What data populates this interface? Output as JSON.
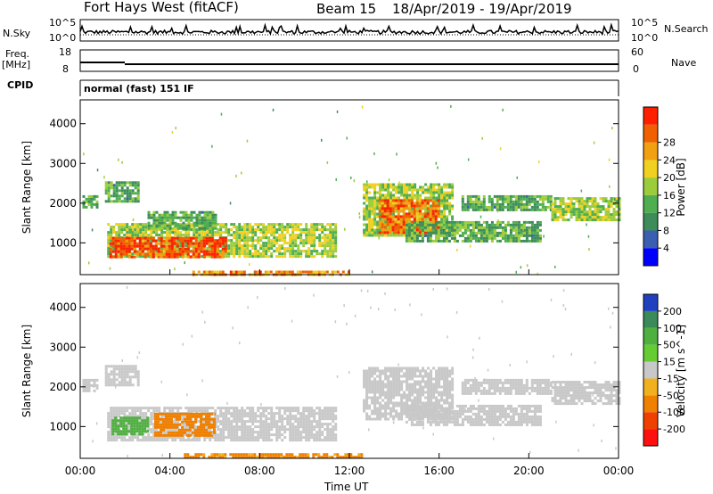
{
  "header": {
    "radar": "Fort Hays West (fitACF)",
    "beam": "Beam 15",
    "dates": "18/Apr/2019 - 19/Apr/2019"
  },
  "side_labels": {
    "nsky": "N.Sky",
    "nsearch": "N.Search",
    "freq": "Freq.",
    "mhz": "[MHz]",
    "nave": "Nave",
    "cpid": "CPID"
  },
  "strip_ticks": {
    "noise_left_top": "10^5",
    "noise_left_bottom": "10^0",
    "noise_right_top": "10^5",
    "noise_right_bottom": "10^0",
    "freq_top": "18",
    "freq_bottom": "8",
    "nave_top": "60",
    "nave_bottom": "0"
  },
  "cpid_text": "normal (fast) 151 IF",
  "chart_data": [
    {
      "type": "heatmap",
      "name": "power",
      "ylabel": "Slant Range [km]",
      "colorbar_label": "Power [dB]",
      "colorbar_ticks": [
        "4",
        "8",
        "12",
        "16",
        "20",
        "24",
        "28"
      ],
      "colorbar_colors": [
        "#0000ff",
        "#3a5fb0",
        "#3d8c5a",
        "#4fae50",
        "#9ccc3c",
        "#f0d020",
        "#f0a010",
        "#f06000",
        "#ff2000"
      ],
      "yticks": [
        "1000",
        "2000",
        "3000",
        "4000"
      ],
      "ylim": [
        200,
        4600
      ],
      "xlim_hours": [
        0,
        24
      ],
      "regions": [
        {
          "t0": 0.1,
          "t1": 0.7,
          "r0": 1900,
          "r1": 2200,
          "level": 12
        },
        {
          "t0": 1.1,
          "t1": 2.6,
          "r0": 2050,
          "r1": 2550,
          "level": 12
        },
        {
          "t0": 1.2,
          "t1": 11.4,
          "r0": 650,
          "r1": 1500,
          "level": 16
        },
        {
          "t0": 1.3,
          "t1": 6.5,
          "r0": 650,
          "r1": 1150,
          "level": 28
        },
        {
          "t0": 3.0,
          "t1": 6.0,
          "r0": 1350,
          "r1": 1800,
          "level": 12
        },
        {
          "t0": 5.0,
          "t1": 12.0,
          "r0": 200,
          "r1": 300,
          "level": 24
        },
        {
          "t0": 12.6,
          "t1": 16.6,
          "r0": 1200,
          "r1": 2500,
          "level": 16
        },
        {
          "t0": 13.3,
          "t1": 16.0,
          "r0": 1250,
          "r1": 2100,
          "level": 26
        },
        {
          "t0": 14.5,
          "t1": 20.5,
          "r0": 1050,
          "r1": 1550,
          "level": 12
        },
        {
          "t0": 17.0,
          "t1": 21.0,
          "r0": 1800,
          "r1": 2200,
          "level": 12
        },
        {
          "t0": 21.0,
          "t1": 24.0,
          "r0": 1600,
          "r1": 2150,
          "level": 16
        }
      ]
    },
    {
      "type": "heatmap",
      "name": "velocity",
      "ylabel": "Slant Range [km]",
      "colorbar_label": "Velocity [m s^-1]",
      "colorbar_ticks": [
        "200",
        "100",
        "50",
        "15",
        "-15",
        "-50",
        "-100",
        "-200"
      ],
      "colorbar_colors": [
        "#2040c0",
        "#3a8a5a",
        "#4fb040",
        "#66cc33",
        "#c8c8c8",
        "#f0b020",
        "#f08000",
        "#f04000",
        "#ff1010"
      ],
      "yticks": [
        "1000",
        "2000",
        "3000",
        "4000"
      ],
      "ylim": [
        200,
        4600
      ],
      "xlim_hours": [
        0,
        24
      ],
      "regions": [
        {
          "t0": 0.1,
          "t1": 0.7,
          "r0": 1900,
          "r1": 2200,
          "vel": 0
        },
        {
          "t0": 1.1,
          "t1": 2.6,
          "r0": 2050,
          "r1": 2550,
          "vel": 0
        },
        {
          "t0": 1.2,
          "t1": 11.4,
          "r0": 650,
          "r1": 1500,
          "vel": 0
        },
        {
          "t0": 1.4,
          "t1": 3.0,
          "r0": 800,
          "r1": 1250,
          "vel": 60
        },
        {
          "t0": 3.3,
          "t1": 6.0,
          "r0": 780,
          "r1": 1350,
          "vel": -60
        },
        {
          "t0": 4.5,
          "t1": 12.5,
          "r0": 200,
          "r1": 330,
          "vel": -40
        },
        {
          "t0": 12.6,
          "t1": 16.6,
          "r0": 1200,
          "r1": 2500,
          "vel": 0
        },
        {
          "t0": 14.5,
          "t1": 20.5,
          "r0": 1050,
          "r1": 1550,
          "vel": 0
        },
        {
          "t0": 17.0,
          "t1": 21.0,
          "r0": 1800,
          "r1": 2200,
          "vel": 0
        },
        {
          "t0": 21.0,
          "t1": 24.0,
          "r0": 1600,
          "r1": 2150,
          "vel": 0
        }
      ]
    }
  ],
  "xaxis": {
    "ticks": [
      "00:00",
      "04:00",
      "08:00",
      "12:00",
      "16:00",
      "20:00",
      "00:00"
    ],
    "label": "Time UT"
  }
}
